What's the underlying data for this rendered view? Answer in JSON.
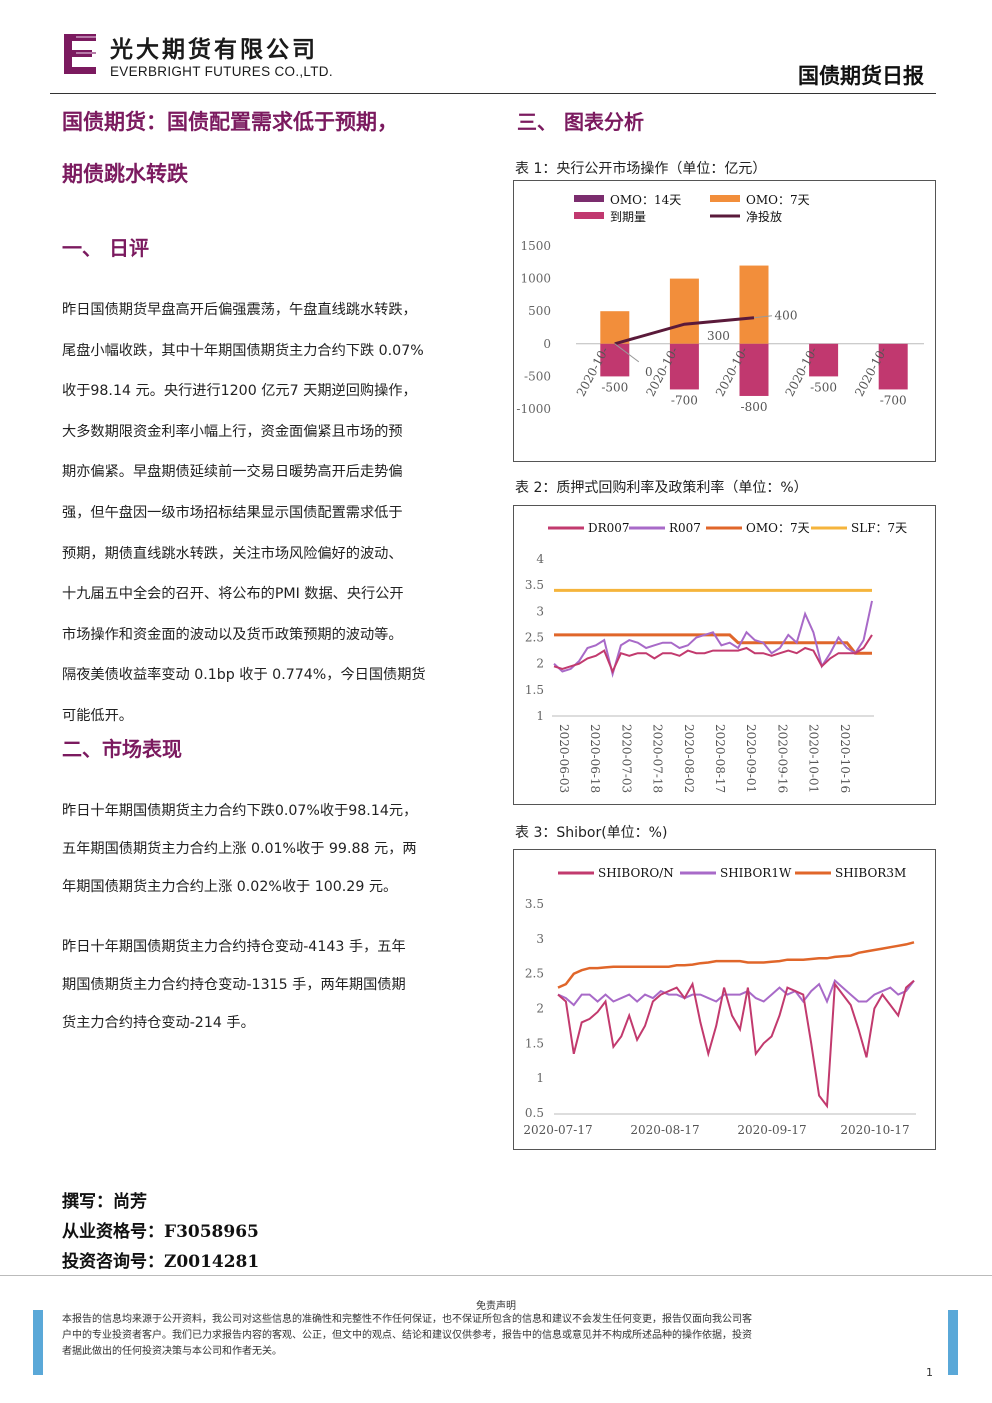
{
  "header": {
    "company_cn": "光大期货有限公司",
    "company_en": "EVERBRIGHT FUTURES CO.,LTD.",
    "report_title": "国债期货日报"
  },
  "article": {
    "title_line1": "国债期货：国债配置需求低于预期，",
    "title_line2": "期债跳水转跌",
    "section1_heading": "一、  日评",
    "section1_lines": [
      "昨日国债期货早盘高开后偏强震荡，午盘直线跳水转跌，",
      "尾盘小幅收跌，其中十年期国债期货主力合约下跌 0.07%",
      "收于98.14 元。央行进行1200 亿元7 天期逆回购操作，",
      "大多数期限资金利率小幅上行，资金面偏紧且市场的预",
      "期亦偏紧。早盘期债延续前一交易日暖势高开后走势偏",
      "强，但午盘因一级市场招标结果显示国债配置需求低于",
      "预期，期债直线跳水转跌，关注市场风险偏好的波动、",
      "十九届五中全会的召开、将公布的PMI 数据、央行公开",
      "市场操作和资金面的波动以及货币政策预期的波动等。",
      "隔夜美债收益率变动 0.1bp 收于 0.774%，今日国债期货",
      "可能低开。"
    ],
    "section2_heading": "二、市场表现",
    "section2_para1": [
      "昨日十年期国债期货主力合约下跌0.07%收于98.14元，",
      "五年期国债期货主力合约上涨 0.01%收于 99.88 元，两",
      "年期国债期货主力合约上涨 0.02%收于 100.29 元。"
    ],
    "section2_para2": [
      "昨日十年期国债期货主力合约持仓变动-4143 手，五年",
      "期国债期货主力合约持仓变动-1315 手，两年期国债期",
      "货主力合约持仓变动-214 手。"
    ],
    "author": "撰写：尚芳",
    "license": "从业资格号：F3058965",
    "consult": "投资咨询号：Z0014281"
  },
  "section3_heading": "三、  图表分析",
  "captions": {
    "chart1": "表 1：央行公开市场操作（单位：亿元）",
    "chart2": "表 2：质押式回购利率及政策利率（单位：%）",
    "chart3": "表 3：Shibor(单位：%)"
  },
  "colors": {
    "brand_purple": "#7b1a5f",
    "omo14": "#7b2d6e",
    "omo7": "#f28e3b",
    "maturity": "#c1386f",
    "net": "#5a1a3a",
    "dr007": "#c23a6e",
    "r007": "#a86ac8",
    "omo7_rate": "#e0662a",
    "slf7": "#f5b43c",
    "shibor_on": "#c23a6e",
    "shibor_1w": "#a86ac8",
    "shibor_3m": "#e0662a"
  },
  "chart_data": [
    {
      "type": "bar",
      "categories": [
        "2020-10-",
        "2020-10-",
        "2020-10-",
        "2020-10-",
        "2020-10-"
      ],
      "series": [
        {
          "name": "OMO：14天",
          "values": [
            0,
            0,
            0,
            0,
            0
          ]
        },
        {
          "name": "OMO：7天",
          "values": [
            500,
            1000,
            1200,
            0,
            0
          ]
        },
        {
          "name": "到期量",
          "values": [
            -500,
            -700,
            -800,
            -500,
            -700
          ]
        },
        {
          "name": "净投放",
          "values": [
            0,
            300,
            400,
            null,
            null
          ]
        }
      ],
      "data_labels": {
        "maturity": [
          "-500",
          "-700",
          "-800",
          "-500",
          "-700"
        ],
        "net": [
          "0",
          "300",
          "400"
        ]
      },
      "y_ticks": [
        "1500",
        "1000",
        "500",
        "0",
        "-500",
        "-1000"
      ],
      "ylim": [
        -1000,
        1500
      ],
      "legend": "top"
    },
    {
      "type": "line",
      "x_ticks": [
        "2020-06-03",
        "2020-06-18",
        "2020-07-03",
        "2020-07-18",
        "2020-08-02",
        "2020-08-17",
        "2020-09-01",
        "2020-09-16",
        "2020-10-01",
        "2020-10-16"
      ],
      "y_ticks": [
        "4",
        "3.5",
        "3",
        "2.5",
        "2",
        "1.5",
        "1"
      ],
      "ylim": [
        1,
        4
      ],
      "series": [
        {
          "name": "DR007",
          "values": [
            1.95,
            1.9,
            1.95,
            2.0,
            2.1,
            2.15,
            2.25,
            1.85,
            2.2,
            2.15,
            2.2,
            2.2,
            2.1,
            2.2,
            2.2,
            2.15,
            2.25,
            2.2,
            2.2,
            2.25,
            2.25,
            2.25,
            2.25,
            2.3,
            2.2,
            2.2,
            2.15,
            2.2,
            2.25,
            2.2,
            2.3,
            2.25,
            1.95,
            2.1,
            2.2,
            2.2,
            2.2,
            2.3,
            2.55
          ]
        },
        {
          "name": "R007",
          "values": [
            2.0,
            1.85,
            1.9,
            2.05,
            2.3,
            2.35,
            2.45,
            1.8,
            2.35,
            2.45,
            2.4,
            2.3,
            2.35,
            2.4,
            2.4,
            2.3,
            2.35,
            2.5,
            2.55,
            2.6,
            2.35,
            2.4,
            2.3,
            2.6,
            2.45,
            2.4,
            2.2,
            2.3,
            2.55,
            2.4,
            2.95,
            2.6,
            1.95,
            2.2,
            2.5,
            2.3,
            2.2,
            2.45,
            3.2
          ]
        },
        {
          "name": "OMO：7天",
          "values": [
            2.55,
            2.55,
            2.55,
            2.55,
            2.55,
            2.55,
            2.55,
            2.55,
            2.55,
            2.55,
            2.55,
            2.55,
            2.55,
            2.55,
            2.55,
            2.55,
            2.55,
            2.55,
            2.55,
            2.55,
            2.55,
            2.55,
            2.4,
            2.4,
            2.4,
            2.4,
            2.4,
            2.4,
            2.4,
            2.4,
            2.4,
            2.4,
            2.4,
            2.4,
            2.4,
            2.4,
            2.2,
            2.2,
            2.2
          ]
        },
        {
          "name": "SLF：7天",
          "values": [
            3.4,
            3.4,
            3.4,
            3.4,
            3.4,
            3.4,
            3.4,
            3.4,
            3.4,
            3.4,
            3.4,
            3.4,
            3.4,
            3.4,
            3.4,
            3.4,
            3.4,
            3.4,
            3.4,
            3.4,
            3.4,
            3.4,
            3.4,
            3.4,
            3.4,
            3.4,
            3.4,
            3.4,
            3.4,
            3.4,
            3.4,
            3.4,
            3.4,
            3.4,
            3.4,
            3.4,
            3.4,
            3.4,
            3.4
          ]
        }
      ],
      "legend": "top"
    },
    {
      "type": "line",
      "x_ticks": [
        "2020-07-17",
        "2020-08-17",
        "2020-09-17",
        "2020-10-17"
      ],
      "y_ticks": [
        "3.5",
        "3",
        "2.5",
        "2",
        "1.5",
        "1",
        "0.5"
      ],
      "ylim": [
        0.5,
        3.5
      ],
      "series": [
        {
          "name": "SHIBORO/N",
          "values": [
            2.2,
            2.1,
            1.35,
            1.8,
            1.85,
            1.95,
            2.1,
            1.45,
            1.6,
            1.9,
            1.55,
            1.75,
            2.1,
            2.2,
            2.25,
            2.3,
            2.15,
            2.35,
            1.8,
            1.35,
            1.75,
            2.3,
            1.9,
            1.7,
            2.3,
            1.35,
            1.5,
            1.6,
            1.9,
            2.3,
            2.25,
            2.2,
            1.5,
            0.75,
            0.6,
            2.35,
            2.2,
            2.05,
            1.7,
            1.3,
            2.0,
            2.2,
            2.05,
            1.9,
            2.3,
            2.4
          ]
        },
        {
          "name": "SHIBOR1W",
          "values": [
            2.2,
            2.15,
            2.05,
            2.2,
            2.2,
            2.1,
            2.2,
            2.1,
            2.15,
            2.2,
            2.1,
            2.2,
            2.15,
            2.25,
            2.2,
            2.2,
            2.15,
            2.2,
            2.2,
            2.15,
            2.1,
            2.2,
            2.2,
            2.2,
            2.25,
            2.15,
            2.1,
            2.2,
            2.3,
            2.2,
            2.25,
            2.1,
            2.25,
            2.35,
            2.1,
            2.4,
            2.3,
            2.2,
            2.1,
            2.1,
            2.2,
            2.25,
            2.3,
            2.2,
            2.25,
            2.4
          ]
        },
        {
          "name": "SHIBOR3M",
          "values": [
            2.3,
            2.35,
            2.5,
            2.55,
            2.58,
            2.58,
            2.59,
            2.6,
            2.6,
            2.6,
            2.6,
            2.6,
            2.6,
            2.6,
            2.6,
            2.62,
            2.62,
            2.63,
            2.65,
            2.66,
            2.68,
            2.68,
            2.68,
            2.68,
            2.66,
            2.66,
            2.66,
            2.67,
            2.68,
            2.7,
            2.7,
            2.7,
            2.71,
            2.72,
            2.72,
            2.74,
            2.75,
            2.76,
            2.8,
            2.82,
            2.84,
            2.86,
            2.88,
            2.9,
            2.92,
            2.95
          ]
        }
      ],
      "legend": "top"
    }
  ],
  "footer": {
    "disclaimer_title": "免责声明",
    "disclaimer_lines": [
      "本报告的信息均来源于公开资料，我公司对这些信息的准确性和完整性不作任何保证，也不保证所包含的信息和建议不会发生任何变更，报告仅面向我公司客",
      "户中的专业投资者客户。我们已力求报告内容的客观、公正，但文中的观点、结论和建议仅供参考，报告中的信息或意见并不构成所述品种的操作依据，投资",
      "者据此做出的任何投资决策与本公司和作者无关。"
    ],
    "page_number": "1"
  }
}
